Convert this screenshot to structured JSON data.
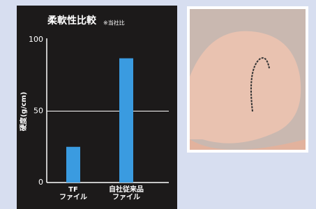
{
  "chart_data": {
    "type": "bar",
    "title": "柔軟性比較",
    "note": "※当社比",
    "y_label": "硬度(g/cm)",
    "categories": [
      [
        "TF",
        "ファイル"
      ],
      [
        "自社従来品",
        "ファイル"
      ]
    ],
    "values": [
      25,
      87
    ],
    "color": "#3a9be0",
    "ylim": [
      0,
      100
    ],
    "yticks": [
      0,
      50,
      100
    ],
    "grid": true
  }
}
